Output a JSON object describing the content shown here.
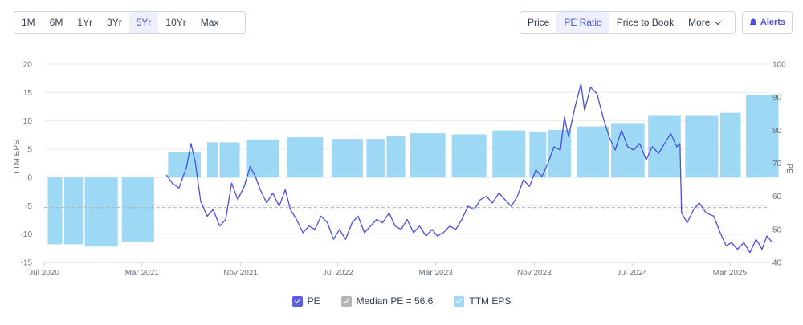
{
  "range_buttons": [
    "1M",
    "6M",
    "1Yr",
    "3Yr",
    "5Yr",
    "10Yr",
    "Max"
  ],
  "range_active": "5Yr",
  "metric_tabs": [
    "Price",
    "PE Ratio",
    "Price to Book",
    "More"
  ],
  "metric_active": "PE Ratio",
  "alerts_label": "Alerts",
  "colors": {
    "pe_line": "#4a4fe0",
    "eps_bar": "#9dd8f5",
    "median_line": "#b0b0b0",
    "accent": "#4a4fe0"
  },
  "legend": [
    {
      "label": "PE",
      "color": "#5a5fe6"
    },
    {
      "label": "Median PE = 56.6",
      "color": "#b5b5b5"
    },
    {
      "label": "TTM EPS",
      "color": "#9dd8f5"
    }
  ],
  "chart_data": {
    "type": "bar+line",
    "x_tick_labels": [
      "Jul 2020",
      "Mar 2021",
      "Nov 2021",
      "Jul 2022",
      "Mar 2023",
      "Nov 2023",
      "Jul 2024",
      "Mar 2025"
    ],
    "x_tick_positions": [
      "2020-07",
      "2021-03",
      "2021-11",
      "2022-07",
      "2023-03",
      "2023-11",
      "2024-07",
      "2025-03"
    ],
    "x_range": [
      "2020-07",
      "2025-06"
    ],
    "left_axis": {
      "label": "TTM EPS",
      "ylim": [
        -15,
        20
      ],
      "ticks": [
        20,
        15,
        10,
        5,
        0,
        -5,
        -10,
        -15
      ]
    },
    "right_axis": {
      "label": "PE",
      "ylim": [
        40,
        100
      ],
      "ticks": [
        100,
        90,
        80,
        70,
        60,
        50,
        40
      ]
    },
    "median_pe": 56.6,
    "eps_bars": [
      {
        "start": "2020-07-10",
        "end": "2020-08-15",
        "value": -11.8
      },
      {
        "start": "2020-08-20",
        "end": "2020-10-05",
        "value": -11.8
      },
      {
        "start": "2020-10-10",
        "end": "2020-12-31",
        "value": -12.2
      },
      {
        "start": "2021-01-10",
        "end": "2021-03-31",
        "value": -11.3
      },
      {
        "start": "2021-05-05",
        "end": "2021-07-25",
        "value": 4.5
      },
      {
        "start": "2021-08-10",
        "end": "2021-09-05",
        "value": 6.2
      },
      {
        "start": "2021-09-10",
        "end": "2021-10-30",
        "value": 6.2
      },
      {
        "start": "2021-11-15",
        "end": "2022-02-05",
        "value": 6.7
      },
      {
        "start": "2022-02-25",
        "end": "2022-05-25",
        "value": 7.1
      },
      {
        "start": "2022-06-15",
        "end": "2022-09-01",
        "value": 6.8
      },
      {
        "start": "2022-09-10",
        "end": "2022-10-25",
        "value": 6.8
      },
      {
        "start": "2022-10-30",
        "end": "2022-12-15",
        "value": 7.3
      },
      {
        "start": "2022-12-28",
        "end": "2023-03-25",
        "value": 7.8
      },
      {
        "start": "2023-04-10",
        "end": "2023-07-05",
        "value": 7.6
      },
      {
        "start": "2023-07-20",
        "end": "2023-10-10",
        "value": 8.3
      },
      {
        "start": "2023-10-20",
        "end": "2023-12-01",
        "value": 8.1
      },
      {
        "start": "2023-12-05",
        "end": "2024-01-31",
        "value": 8.4
      },
      {
        "start": "2024-02-15",
        "end": "2024-05-05",
        "value": 9.0
      },
      {
        "start": "2024-05-10",
        "end": "2024-08-01",
        "value": 9.6
      },
      {
        "start": "2024-08-10",
        "end": "2024-10-30",
        "value": 11.0
      },
      {
        "start": "2024-11-10",
        "end": "2025-01-31",
        "value": 11.0
      },
      {
        "start": "2025-02-05",
        "end": "2025-03-28",
        "value": 11.4
      },
      {
        "start": "2025-04-10",
        "end": "2025-06-30",
        "value": 14.6
      }
    ],
    "pe_series": [
      [
        "2021-05-01",
        66.5
      ],
      [
        "2021-05-15",
        64
      ],
      [
        "2021-06-01",
        62.5
      ],
      [
        "2021-06-20",
        69
      ],
      [
        "2021-07-01",
        76
      ],
      [
        "2021-07-12",
        70
      ],
      [
        "2021-07-25",
        58.5
      ],
      [
        "2021-08-10",
        54
      ],
      [
        "2021-08-25",
        56
      ],
      [
        "2021-09-10",
        51
      ],
      [
        "2021-09-25",
        53
      ],
      [
        "2021-10-10",
        64
      ],
      [
        "2021-10-25",
        59
      ],
      [
        "2021-11-10",
        63
      ],
      [
        "2021-11-25",
        69
      ],
      [
        "2021-12-08",
        66
      ],
      [
        "2021-12-20",
        62
      ],
      [
        "2022-01-05",
        58
      ],
      [
        "2022-01-20",
        61
      ],
      [
        "2022-02-05",
        57
      ],
      [
        "2022-02-20",
        62
      ],
      [
        "2022-03-05",
        56
      ],
      [
        "2022-03-20",
        53
      ],
      [
        "2022-04-05",
        49
      ],
      [
        "2022-04-20",
        51
      ],
      [
        "2022-05-05",
        50
      ],
      [
        "2022-05-20",
        54
      ],
      [
        "2022-06-05",
        52
      ],
      [
        "2022-06-20",
        47
      ],
      [
        "2022-07-05",
        50
      ],
      [
        "2022-07-20",
        47
      ],
      [
        "2022-08-05",
        52
      ],
      [
        "2022-08-20",
        54
      ],
      [
        "2022-09-05",
        49
      ],
      [
        "2022-09-20",
        51
      ],
      [
        "2022-10-05",
        53
      ],
      [
        "2022-10-20",
        52
      ],
      [
        "2022-11-05",
        55
      ],
      [
        "2022-11-20",
        51
      ],
      [
        "2022-12-05",
        50
      ],
      [
        "2022-12-20",
        53
      ],
      [
        "2023-01-05",
        49
      ],
      [
        "2023-01-20",
        51
      ],
      [
        "2023-02-05",
        48
      ],
      [
        "2023-02-20",
        50
      ],
      [
        "2023-03-05",
        48
      ],
      [
        "2023-03-20",
        49
      ],
      [
        "2023-04-05",
        51
      ],
      [
        "2023-04-20",
        50
      ],
      [
        "2023-05-05",
        53
      ],
      [
        "2023-05-20",
        57
      ],
      [
        "2023-06-05",
        56
      ],
      [
        "2023-06-20",
        59
      ],
      [
        "2023-07-05",
        60
      ],
      [
        "2023-07-20",
        58
      ],
      [
        "2023-08-05",
        61
      ],
      [
        "2023-08-20",
        59
      ],
      [
        "2023-09-05",
        57
      ],
      [
        "2023-09-20",
        60
      ],
      [
        "2023-10-05",
        65
      ],
      [
        "2023-10-20",
        63
      ],
      [
        "2023-11-05",
        68
      ],
      [
        "2023-11-20",
        66
      ],
      [
        "2023-12-05",
        70
      ],
      [
        "2023-12-20",
        75
      ],
      [
        "2024-01-05",
        74
      ],
      [
        "2024-01-15",
        84
      ],
      [
        "2024-01-25",
        78
      ],
      [
        "2024-02-10",
        87
      ],
      [
        "2024-02-25",
        94
      ],
      [
        "2024-03-05",
        86
      ],
      [
        "2024-03-20",
        93
      ],
      [
        "2024-04-05",
        91
      ],
      [
        "2024-04-20",
        84
      ],
      [
        "2024-05-05",
        78
      ],
      [
        "2024-05-20",
        74
      ],
      [
        "2024-06-05",
        80
      ],
      [
        "2024-06-20",
        75
      ],
      [
        "2024-07-05",
        74
      ],
      [
        "2024-07-20",
        76
      ],
      [
        "2024-08-05",
        71
      ],
      [
        "2024-08-20",
        75
      ],
      [
        "2024-09-05",
        73
      ],
      [
        "2024-09-20",
        76
      ],
      [
        "2024-10-05",
        79
      ],
      [
        "2024-10-20",
        75
      ],
      [
        "2024-10-28",
        76
      ],
      [
        "2024-11-01",
        55
      ],
      [
        "2024-11-15",
        52
      ],
      [
        "2024-12-01",
        56
      ],
      [
        "2024-12-15",
        58
      ],
      [
        "2025-01-01",
        55
      ],
      [
        "2025-01-20",
        54
      ],
      [
        "2025-02-05",
        49
      ],
      [
        "2025-02-20",
        45
      ],
      [
        "2025-03-05",
        46
      ],
      [
        "2025-03-20",
        44
      ],
      [
        "2025-04-05",
        46
      ],
      [
        "2025-04-20",
        43
      ],
      [
        "2025-05-05",
        47
      ],
      [
        "2025-05-20",
        44
      ],
      [
        "2025-06-01",
        48
      ],
      [
        "2025-06-15",
        46
      ]
    ]
  }
}
